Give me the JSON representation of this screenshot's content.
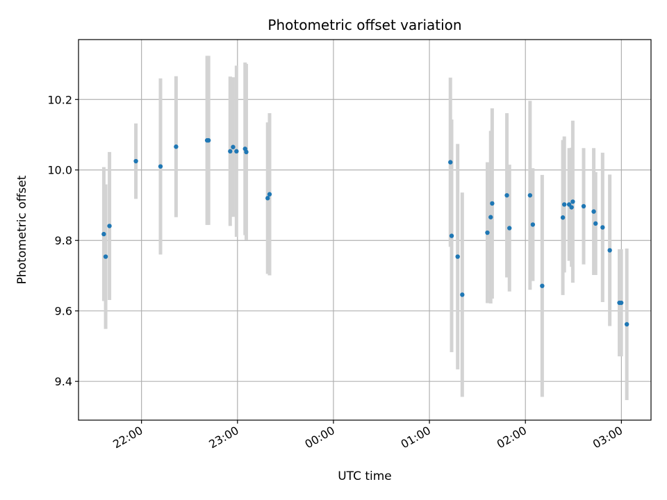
{
  "chart_data": {
    "type": "scatter",
    "title": "Photometric offset variation",
    "xlabel": "UTC time",
    "ylabel": "Photometric offset",
    "x_unit": "UTC time (HH:MM:SS), day 1 = evening, day 2 = after midnight",
    "xlim": [
      "1 21:20:38",
      "2 03:18:31"
    ],
    "ylim": [
      9.29,
      10.37
    ],
    "x_ticks": [
      "22:00",
      "23:00",
      "00:00",
      "01:00",
      "02:00",
      "03:00"
    ],
    "y_ticks": [
      "9.4",
      "9.6",
      "9.8",
      "10.0",
      "10.2"
    ],
    "grid": true,
    "colors": {
      "point": "#1f77b4",
      "errorbar": "#d3d3d3",
      "grid": "#b0b0b0"
    },
    "series": [
      {
        "points": [
          {
            "time": "1 21:36:27",
            "y": 9.818,
            "err": 0.19
          },
          {
            "time": "1 21:37:36",
            "y": 9.754,
            "err": 0.205
          },
          {
            "time": "1 21:40:00",
            "y": 9.841,
            "err": 0.21
          },
          {
            "time": "1 21:56:30",
            "y": 10.025,
            "err": 0.107
          },
          {
            "time": "1 22:11:53",
            "y": 10.01,
            "err": 0.25
          },
          {
            "time": "1 22:21:37",
            "y": 10.066,
            "err": 0.2
          },
          {
            "time": "1 22:41:02",
            "y": 10.084,
            "err": 0.24
          },
          {
            "time": "1 22:41:55",
            "y": 10.084,
            "err": 0.24
          },
          {
            "time": "1 22:55:27",
            "y": 10.053,
            "err": 0.212
          },
          {
            "time": "1 22:57:15",
            "y": 10.065,
            "err": 0.198
          },
          {
            "time": "1 22:59:23",
            "y": 10.053,
            "err": 0.243
          },
          {
            "time": "1 23:04:46",
            "y": 10.06,
            "err": 0.245
          },
          {
            "time": "1 23:05:31",
            "y": 10.051,
            "err": 0.25
          },
          {
            "time": "1 23:18:52",
            "y": 9.92,
            "err": 0.215
          },
          {
            "time": "1 23:20:04",
            "y": 9.931,
            "err": 0.23
          },
          {
            "time": "2 01:13:06",
            "y": 10.022,
            "err": 0.24
          },
          {
            "time": "2 01:13:53",
            "y": 9.813,
            "err": 0.33
          },
          {
            "time": "2 01:17:39",
            "y": 9.754,
            "err": 0.32
          },
          {
            "time": "2 01:20:31",
            "y": 9.646,
            "err": 0.29
          },
          {
            "time": "2 01:36:13",
            "y": 9.822,
            "err": 0.2
          },
          {
            "time": "2 01:38:18",
            "y": 9.866,
            "err": 0.245
          },
          {
            "time": "2 01:39:13",
            "y": 9.905,
            "err": 0.27
          },
          {
            "time": "2 01:48:25",
            "y": 9.928,
            "err": 0.233
          },
          {
            "time": "2 01:50:01",
            "y": 9.835,
            "err": 0.18
          },
          {
            "time": "2 02:02:53",
            "y": 9.928,
            "err": 0.268
          },
          {
            "time": "2 02:04:38",
            "y": 9.845,
            "err": 0.16
          },
          {
            "time": "2 02:10:29",
            "y": 9.671,
            "err": 0.315
          },
          {
            "time": "2 02:23:24",
            "y": 9.865,
            "err": 0.22
          },
          {
            "time": "2 02:24:19",
            "y": 9.902,
            "err": 0.193
          },
          {
            "time": "2 02:27:20",
            "y": 9.902,
            "err": 0.16
          },
          {
            "time": "2 02:28:51",
            "y": 9.894,
            "err": 0.169
          },
          {
            "time": "2 02:29:37",
            "y": 9.91,
            "err": 0.23
          },
          {
            "time": "2 02:36:24",
            "y": 9.897,
            "err": 0.165
          },
          {
            "time": "2 02:42:43",
            "y": 9.882,
            "err": 0.18
          },
          {
            "time": "2 02:43:52",
            "y": 9.848,
            "err": 0.146
          },
          {
            "time": "2 02:48:15",
            "y": 9.837,
            "err": 0.212
          },
          {
            "time": "2 02:52:44",
            "y": 9.772,
            "err": 0.215
          },
          {
            "time": "2 02:58:46",
            "y": 9.623,
            "err": 0.152
          },
          {
            "time": "2 02:59:54",
            "y": 9.623,
            "err": 0.152
          },
          {
            "time": "2 03:03:23",
            "y": 9.562,
            "err": 0.215
          }
        ]
      }
    ]
  }
}
